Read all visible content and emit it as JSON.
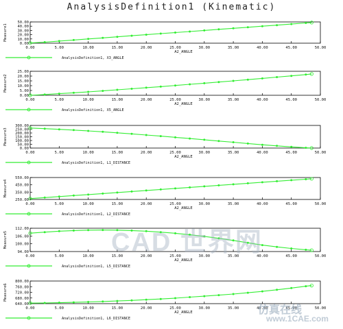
{
  "title": "AnalysisDefinition1 (Kinematic)",
  "watermark": {
    "main": "CAD 世界网",
    "corner_cn": "仿真在线",
    "corner_url": "www.1CAE.com"
  },
  "colors": {
    "series": "#33ee33",
    "axis": "#000000",
    "grid": "#000000"
  },
  "chart_data": [
    {
      "type": "line",
      "ylabel": "Measure1",
      "xlabel": "A2_ANGLE",
      "legend": "AnalysisDefinition1, X3_ANGLE",
      "legend_position": "bottom-left",
      "xlim": [
        0,
        50
      ],
      "ylim": [
        0,
        50
      ],
      "xticks": [
        "0.00",
        "5.00",
        "10.00",
        "15.00",
        "20.00",
        "25.00",
        "30.00",
        "35.00",
        "40.00",
        "45.00",
        "50.00"
      ],
      "yticks": [
        "0.00",
        "10.00",
        "20.00",
        "30.00",
        "40.00",
        "50.00"
      ],
      "x": [
        0,
        2.5,
        5,
        7.5,
        10,
        12.5,
        15,
        17.5,
        20,
        22.5,
        25,
        27.5,
        30,
        32.5,
        35,
        37.5,
        40,
        42.5,
        45,
        47.5,
        48.5
      ],
      "y": [
        0.5,
        2.5,
        5,
        7.5,
        10,
        12.5,
        15,
        17.5,
        20,
        22.5,
        25,
        27.5,
        30,
        32.5,
        35,
        37.5,
        40,
        42.5,
        45,
        47.5,
        48.5
      ]
    },
    {
      "type": "line",
      "ylabel": "Measure2",
      "xlabel": "A2_ANGLE",
      "legend": "AnalysisDefinition1, X5_ANGLE",
      "legend_position": "bottom-left",
      "xlim": [
        0,
        50
      ],
      "ylim": [
        0,
        25
      ],
      "xticks": [
        "0.00",
        "5.00",
        "10.00",
        "15.00",
        "20.00",
        "25.00",
        "30.00",
        "35.00",
        "40.00",
        "45.00",
        "50.00"
      ],
      "yticks": [
        "0.00",
        "5.00",
        "10.00",
        "15.00",
        "20.00",
        "25.00"
      ],
      "x": [
        0,
        2.5,
        5,
        7.5,
        10,
        12.5,
        15,
        17.5,
        20,
        22.5,
        25,
        27.5,
        30,
        32.5,
        35,
        37.5,
        40,
        42.5,
        45,
        47.5,
        48.5
      ],
      "y": [
        0,
        0.8,
        1.7,
        2.6,
        3.6,
        4.6,
        5.7,
        6.8,
        7.9,
        9.0,
        10.2,
        11.4,
        12.6,
        13.8,
        15.0,
        16.3,
        17.6,
        18.9,
        20.2,
        21.6,
        22.2
      ]
    },
    {
      "type": "line",
      "ylabel": "Measure3",
      "xlabel": "A2_ANGLE",
      "legend": "AnalysisDefinition1, L1_DISTANCE",
      "legend_position": "bottom-left",
      "xlim": [
        0,
        50
      ],
      "ylim": [
        0,
        300
      ],
      "xticks": [
        "0.00",
        "5.00",
        "10.00",
        "15.00",
        "20.00",
        "25.00",
        "30.00",
        "35.00",
        "40.00",
        "45.00",
        "50.00"
      ],
      "yticks": [
        "0.00",
        "50.00",
        "100.00",
        "150.00",
        "200.00",
        "250.00",
        "300.00"
      ],
      "x": [
        0,
        2.5,
        5,
        7.5,
        10,
        12.5,
        15,
        17.5,
        20,
        22.5,
        25,
        27.5,
        30,
        32.5,
        35,
        37.5,
        40,
        42.5,
        45,
        47.5,
        48.5
      ],
      "y": [
        265,
        257,
        248,
        238,
        227,
        215,
        202,
        188,
        173,
        158,
        142,
        126,
        110,
        93,
        77,
        60,
        44,
        29,
        15,
        4,
        0
      ]
    },
    {
      "type": "line",
      "ylabel": "Measure4",
      "xlabel": "A2_ANGLE",
      "legend": "AnalysisDefinition1, L2_DISTANCE",
      "legend_position": "bottom-left",
      "xlim": [
        0,
        50
      ],
      "ylim": [
        250,
        550
      ],
      "xticks": [
        "0.00",
        "5.00",
        "10.00",
        "15.00",
        "20.00",
        "25.00",
        "30.00",
        "35.00",
        "40.00",
        "45.00",
        "50.00"
      ],
      "yticks": [
        "250.00",
        "350.00",
        "450.00",
        "550.00"
      ],
      "x": [
        0,
        2.5,
        5,
        7.5,
        10,
        12.5,
        15,
        17.5,
        20,
        22.5,
        25,
        27.5,
        30,
        32.5,
        35,
        37.5,
        40,
        42.5,
        45,
        47.5,
        48.5
      ],
      "y": [
        262,
        275,
        289,
        303,
        317,
        331,
        345,
        359,
        373,
        387,
        401,
        415,
        429,
        443,
        457,
        471,
        485,
        499,
        513,
        527,
        533
      ]
    },
    {
      "type": "line",
      "ylabel": "Measure5",
      "xlabel": "A2_ANGLE",
      "legend": "AnalysisDefinition1, L5_DISTANCE",
      "legend_position": "bottom-left",
      "xlim": [
        0,
        50
      ],
      "ylim": [
        94,
        112
      ],
      "xticks": [
        "0.00",
        "5.00",
        "10.00",
        "15.00",
        "20.00",
        "25.00",
        "30.00",
        "35.00",
        "40.00",
        "45.00",
        "50.00"
      ],
      "yticks": [
        "94.00",
        "100.00",
        "106.00",
        "112.00"
      ],
      "x": [
        0,
        2.5,
        5,
        7.5,
        10,
        12.5,
        15,
        17.5,
        20,
        22.5,
        25,
        27.5,
        30,
        32.5,
        35,
        37.5,
        40,
        42.5,
        45,
        47.5,
        48.5
      ],
      "y": [
        108.2,
        109.0,
        109.7,
        110.2,
        110.5,
        110.6,
        110.5,
        110.2,
        109.7,
        109.0,
        108.1,
        107.0,
        105.7,
        104.2,
        102.6,
        100.8,
        99.0,
        97.6,
        96.4,
        95.4,
        95.0
      ]
    },
    {
      "type": "line",
      "ylabel": "Measure6",
      "xlabel": "A2_ANGLE",
      "legend": "AnalysisDefinition1, L6_DISTANCE",
      "legend_position": "bottom-left",
      "xlim": [
        0,
        50
      ],
      "ylim": [
        640,
        800
      ],
      "xticks": [
        "0.00",
        "5.00",
        "10.00",
        "15.00",
        "20.00",
        "25.00",
        "30.00",
        "35.00",
        "40.00",
        "45.00",
        "50.00"
      ],
      "yticks": [
        "640.00",
        "680.00",
        "720.00",
        "760.00",
        "800.00"
      ],
      "x": [
        0,
        2.5,
        5,
        7.5,
        10,
        12.5,
        15,
        17.5,
        20,
        22.5,
        25,
        27.5,
        30,
        32.5,
        35,
        37.5,
        40,
        42.5,
        45,
        47.5,
        48.5
      ],
      "y": [
        644,
        645,
        647,
        649,
        652,
        655,
        659,
        663,
        668,
        673,
        679,
        686,
        693,
        700,
        708,
        717,
        727,
        738,
        750,
        763,
        768
      ]
    }
  ]
}
